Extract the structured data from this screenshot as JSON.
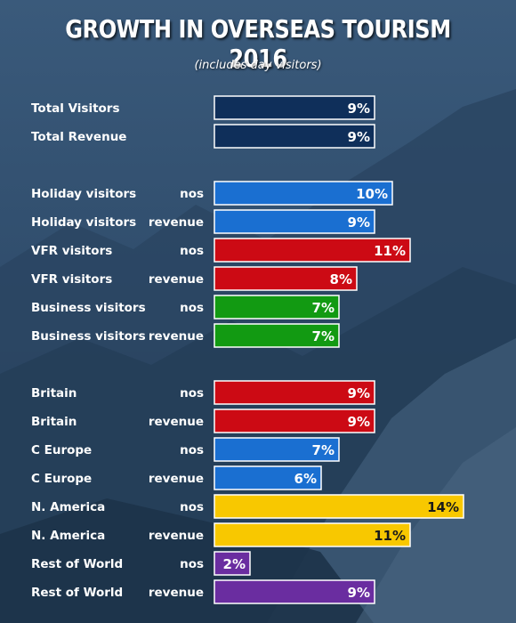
{
  "title": "GROWTH IN OVERSEAS TOURISM 2016",
  "subtitle": "(includes day visitors)",
  "chart_data": {
    "type": "bar",
    "orientation": "horizontal",
    "value_unit": "%",
    "grid": false,
    "xlim": [
      0,
      14
    ],
    "rows": [
      {
        "category": "Total Visitors",
        "metric": "",
        "value": 9,
        "label": "9%",
        "color": "#0f2f5a",
        "text_color": "#ffffff"
      },
      {
        "category": "Total Revenue",
        "metric": "",
        "value": 9,
        "label": "9%",
        "color": "#0f2f5a",
        "text_color": "#ffffff"
      },
      {
        "category": "Holiday visitors",
        "metric": "nos",
        "value": 10,
        "label": "10%",
        "color": "#1a6fd1",
        "text_color": "#ffffff"
      },
      {
        "category": "Holiday visitors",
        "metric": "revenue",
        "value": 9,
        "label": "9%",
        "color": "#1a6fd1",
        "text_color": "#ffffff"
      },
      {
        "category": "VFR visitors",
        "metric": "nos",
        "value": 11,
        "label": "11%",
        "color": "#cc0a14",
        "text_color": "#ffffff"
      },
      {
        "category": "VFR visitors",
        "metric": "revenue",
        "value": 8,
        "label": "8%",
        "color": "#cc0a14",
        "text_color": "#ffffff"
      },
      {
        "category": "Business visitors",
        "metric": "nos",
        "value": 7,
        "label": "7%",
        "color": "#129a12",
        "text_color": "#ffffff"
      },
      {
        "category": "Business visitors",
        "metric": "revenue",
        "value": 7,
        "label": "7%",
        "color": "#129a12",
        "text_color": "#ffffff"
      },
      {
        "category": "Britain",
        "metric": "nos",
        "value": 9,
        "label": "9%",
        "color": "#cc0a14",
        "text_color": "#ffffff"
      },
      {
        "category": "Britain",
        "metric": "revenue",
        "value": 9,
        "label": "9%",
        "color": "#cc0a14",
        "text_color": "#ffffff"
      },
      {
        "category": "C Europe",
        "metric": "nos",
        "value": 7,
        "label": "7%",
        "color": "#1a6fd1",
        "text_color": "#ffffff"
      },
      {
        "category": "C Europe",
        "metric": "revenue",
        "value": 6,
        "label": "6%",
        "color": "#1a6fd1",
        "text_color": "#ffffff"
      },
      {
        "category": "N. America",
        "metric": "nos",
        "value": 14,
        "label": "14%",
        "color": "#f8c800",
        "text_color": "#1a1a1a"
      },
      {
        "category": "N. America",
        "metric": "revenue",
        "value": 11,
        "label": "11%",
        "color": "#f8c800",
        "text_color": "#1a1a1a"
      },
      {
        "category": "Rest of World",
        "metric": "nos",
        "value": 2,
        "label": "2%",
        "color": "#6a2da0",
        "text_color": "#ffffff"
      },
      {
        "category": "Rest of World",
        "metric": "revenue",
        "value": 9,
        "label": "9%",
        "color": "#6a2da0",
        "text_color": "#ffffff"
      }
    ]
  }
}
